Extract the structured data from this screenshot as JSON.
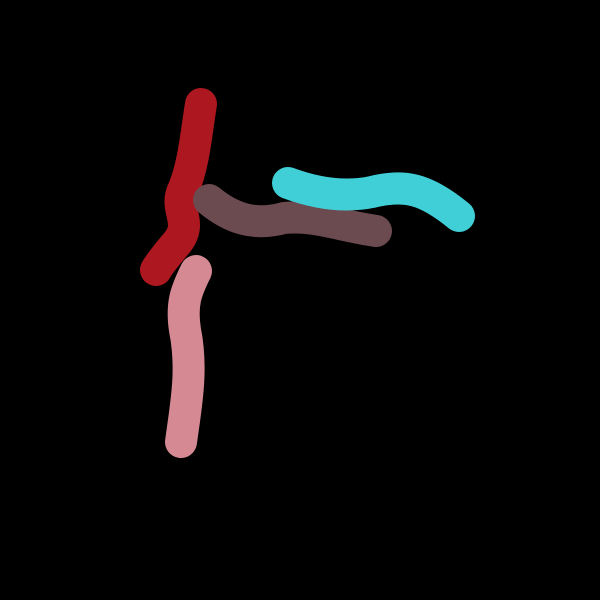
{
  "canvas": {
    "background": "#000000"
  },
  "strokes": [
    {
      "name": "red-stroke",
      "color": "#AD1820"
    },
    {
      "name": "brown-stroke",
      "color": "#6B4A50"
    },
    {
      "name": "cyan-stroke",
      "color": "#40CFD6"
    },
    {
      "name": "pink-stroke",
      "color": "#D58A93"
    }
  ]
}
